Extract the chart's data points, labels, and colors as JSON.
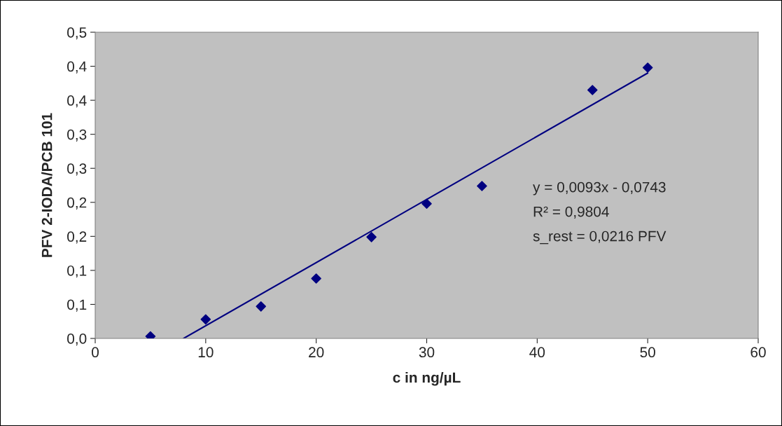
{
  "chart_data": {
    "type": "scatter",
    "xlabel": "c in ng/µL",
    "ylabel": "PFV 2-IODA/PCB 101",
    "x": [
      5,
      10,
      15,
      20,
      25,
      30,
      35,
      45,
      50
    ],
    "series": [
      {
        "color": "#000080",
        "marker": "diamond",
        "values": [
          0.003,
          0.028,
          0.047,
          0.088,
          0.149,
          0.198,
          0.224,
          0.365,
          0.398
        ]
      },
      {
        "type": "line",
        "color": "#000080",
        "marker": "none",
        "x": [
          8,
          50
        ],
        "values": [
          0,
          0.39
        ]
      }
    ],
    "annotations": [
      "y = 0,0093x - 0,0743",
      "R² = 0,9804",
      "s_rest = 0,0216 PFV"
    ],
    "xlim": [
      0,
      60
    ],
    "xticks": [
      0,
      10,
      20,
      30,
      40,
      50,
      60
    ],
    "ylim": [
      0,
      0.45
    ],
    "yticks": [
      {
        "value": 0,
        "label": "0,0"
      },
      {
        "value": 0.05,
        "label": "0,1"
      },
      {
        "value": 0.1,
        "label": "0,1"
      },
      {
        "value": 0.15,
        "label": "0,2"
      },
      {
        "value": 0.2,
        "label": "0,2"
      },
      {
        "value": 0.25,
        "label": "0,3"
      },
      {
        "value": 0.3,
        "label": "0,3"
      },
      {
        "value": 0.35,
        "label": "0,4"
      },
      {
        "value": 0.4,
        "label": "0,4"
      },
      {
        "value": 0.45,
        "label": "0,5"
      }
    ],
    "grid": false,
    "legend": false
  }
}
